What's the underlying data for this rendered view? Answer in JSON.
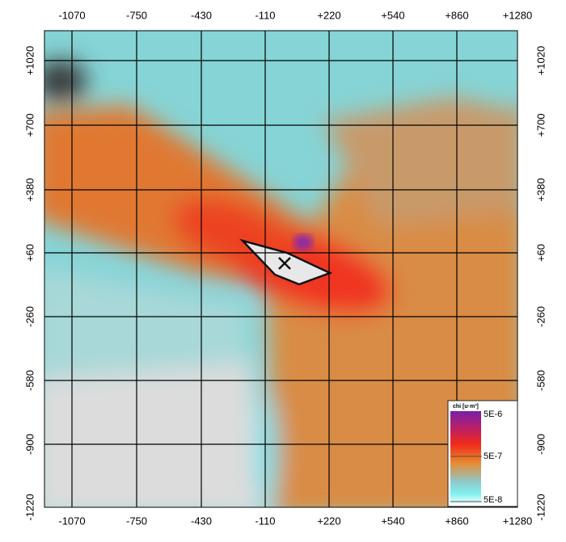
{
  "map": {
    "x_ticks": [
      "-1070",
      "-750",
      "-430",
      "-110",
      "+220",
      "+540",
      "+860",
      "+1280"
    ],
    "y_ticks": [
      "+1020",
      "+700",
      "+380",
      "+60",
      "-260",
      "-580",
      "-900",
      "-1220"
    ],
    "legend": {
      "title": "chi [u·m³]",
      "labels": [
        "5E-6",
        "5E-7",
        "5E-8"
      ]
    }
  }
}
